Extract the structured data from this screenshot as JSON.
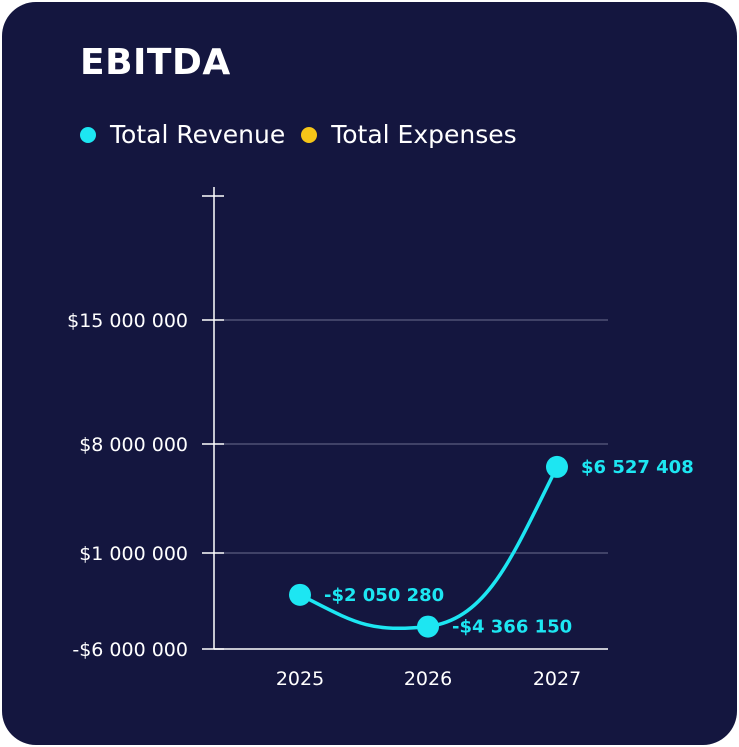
{
  "card": {
    "background": "#14163f"
  },
  "chart_data": {
    "type": "line",
    "title": "EBITDA",
    "x": [
      "2025",
      "2026",
      "2027"
    ],
    "y_ticks": [
      -6000000,
      1000000,
      8000000,
      15000000
    ],
    "y_tick_labels": [
      "-$6 000 000",
      "$1 000 000",
      "$8 000 000",
      "$15 000 000"
    ],
    "ylim": [
      -6000000,
      21000000
    ],
    "grid": true,
    "legend_placement": "top-left",
    "legend": [
      {
        "name": "Total Revenue",
        "color": "#1de6f2"
      },
      {
        "name": "Total Expenses",
        "color": "#f5c518"
      }
    ],
    "series": [
      {
        "name": "Total Revenue",
        "color": "#1de6f2",
        "values": [
          -2050280,
          -4366150,
          6527408
        ],
        "labels": [
          "-$2 050 280",
          "-$4 366 150",
          "$6 527 408"
        ]
      }
    ]
  }
}
